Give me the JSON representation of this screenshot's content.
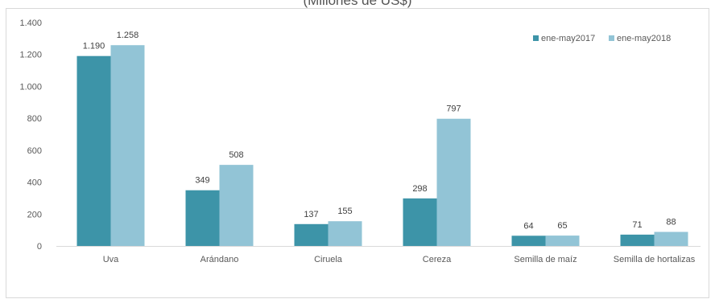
{
  "chart_data": {
    "type": "bar",
    "title": "(Millones de US$)",
    "categories": [
      "Uva",
      "Arándano",
      "Ciruela",
      "Cereza",
      "Semilla de maíz",
      "Semilla de hortalizas"
    ],
    "series": [
      {
        "name": "ene-may2017",
        "values": [
          1190,
          349,
          137,
          298,
          64,
          71
        ],
        "labels": [
          "1.190",
          "349",
          "137",
          "298",
          "64",
          "71"
        ],
        "color": "#3d94a8"
      },
      {
        "name": "ene-may2018",
        "values": [
          1258,
          508,
          155,
          797,
          65,
          88
        ],
        "labels": [
          "1.258",
          "508",
          "155",
          "797",
          "65",
          "88"
        ],
        "color": "#92c4d6"
      }
    ],
    "y_ticks": [
      0,
      200,
      400,
      600,
      800,
      1000,
      1200,
      1400
    ],
    "y_tick_labels": [
      "0",
      "200",
      "400",
      "600",
      "800",
      "1.000",
      "1.200",
      "1.400"
    ],
    "ylim": [
      0,
      1400
    ],
    "xlabel": "",
    "ylabel": "",
    "grid": false,
    "legend_position": "top-right"
  }
}
